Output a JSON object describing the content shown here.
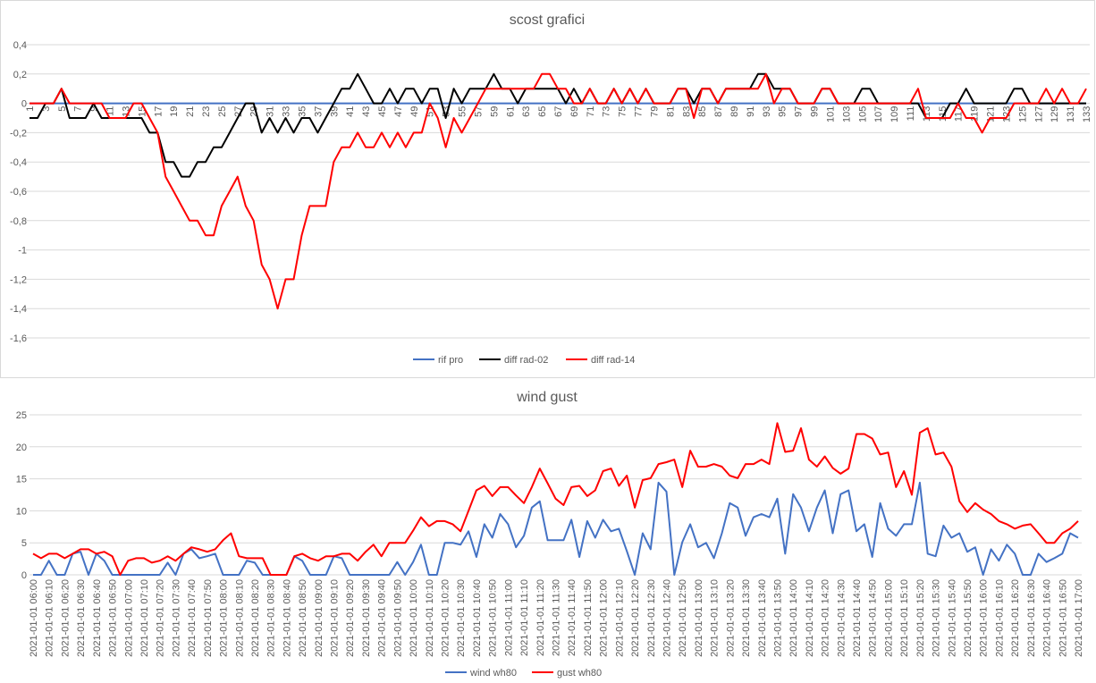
{
  "colors": {
    "rif_pro": "#4472C4",
    "diff_rad_02": "#000000",
    "diff_rad_14": "#FF0000",
    "wind": "#4472C4",
    "gust": "#FF0000",
    "grid": "#D9D9D9",
    "text": "#595959"
  },
  "chart_data": [
    {
      "type": "line",
      "title": "scost grafici",
      "ylim": [
        -1.6,
        0.4
      ],
      "ytick_step": 0.2,
      "yticks": [
        "0,4",
        "0,2",
        "0",
        "-0,2",
        "-0,4",
        "-0,6",
        "-0,8",
        "-1",
        "-1,2",
        "-1,4",
        "-1,6"
      ],
      "grid": true,
      "legend": "bottom",
      "x": [
        1,
        2,
        3,
        4,
        5,
        6,
        7,
        8,
        9,
        10,
        11,
        12,
        13,
        14,
        15,
        16,
        17,
        18,
        19,
        20,
        21,
        22,
        23,
        24,
        25,
        26,
        27,
        28,
        29,
        30,
        31,
        32,
        33,
        34,
        35,
        36,
        37,
        38,
        39,
        40,
        41,
        42,
        43,
        44,
        45,
        46,
        47,
        48,
        49,
        50,
        51,
        52,
        53,
        54,
        55,
        56,
        57,
        58,
        59,
        60,
        61,
        62,
        63,
        64,
        65,
        66,
        67,
        68,
        69,
        70,
        71,
        72,
        73,
        74,
        75,
        76,
        77,
        78,
        79,
        80,
        81,
        82,
        83,
        84,
        85,
        86,
        87,
        88,
        89,
        90,
        91,
        92,
        93,
        94,
        95,
        96,
        97,
        98,
        99,
        100,
        101,
        102,
        103,
        104,
        105,
        106,
        107,
        108,
        109,
        110,
        111,
        112,
        113,
        114,
        115,
        116,
        117,
        118,
        119,
        120,
        121,
        122,
        123,
        124,
        125,
        126,
        127,
        128,
        129,
        130,
        131,
        132,
        133
      ],
      "series": [
        {
          "name": "rif pro",
          "color": "#4472C4",
          "values": "zero"
        },
        {
          "name": "diff rad-02",
          "color": "#000000",
          "values": [
            -0.1,
            -0.1,
            0,
            0,
            0.1,
            -0.1,
            -0.1,
            -0.1,
            0,
            -0.1,
            -0.1,
            -0.1,
            -0.1,
            -0.1,
            -0.1,
            -0.2,
            -0.2,
            -0.4,
            -0.4,
            -0.5,
            -0.5,
            -0.4,
            -0.4,
            -0.3,
            -0.3,
            -0.2,
            -0.1,
            0,
            0,
            -0.2,
            -0.1,
            -0.2,
            -0.1,
            -0.2,
            -0.1,
            -0.1,
            -0.2,
            -0.1,
            0,
            0.1,
            0.1,
            0.2,
            0.1,
            0,
            0,
            0.1,
            0,
            0.1,
            0.1,
            0,
            0.1,
            0.1,
            -0.1,
            0.1,
            0,
            0.1,
            0.1,
            0.1,
            0.2,
            0.1,
            0.1,
            0,
            0.1,
            0.1,
            0.1,
            0.1,
            0.1,
            0,
            0.1,
            0,
            0.1,
            0,
            0,
            0.1,
            0,
            0.1,
            0,
            0.1,
            0,
            0,
            0,
            0.1,
            0.1,
            0,
            0.1,
            0.1,
            0,
            0.1,
            0.1,
            0.1,
            0.1,
            0.2,
            0.2,
            0.1,
            0.1,
            0.1,
            0,
            0,
            0,
            0.1,
            0.1,
            0,
            0,
            0,
            0.1,
            0.1,
            0,
            0,
            0,
            0,
            0,
            0,
            -0.1,
            -0.1,
            -0.1,
            0,
            0,
            0.1,
            0,
            0,
            0,
            0,
            0,
            0.1,
            0.1,
            0,
            0,
            0,
            0,
            0,
            0,
            0,
            0
          ]
        },
        {
          "name": "diff rad-14",
          "color": "#FF0000",
          "values": [
            0,
            0,
            0,
            0,
            0.1,
            0,
            0,
            0,
            0,
            0,
            -0.1,
            -0.1,
            -0.1,
            0,
            0,
            -0.1,
            -0.2,
            -0.5,
            -0.6,
            -0.7,
            -0.8,
            -0.8,
            -0.9,
            -0.9,
            -0.7,
            -0.6,
            -0.5,
            -0.7,
            -0.8,
            -1.1,
            -1.2,
            -1.4,
            -1.2,
            -1.2,
            -0.9,
            -0.7,
            -0.7,
            -0.7,
            -0.4,
            -0.3,
            -0.3,
            -0.2,
            -0.3,
            -0.3,
            -0.2,
            -0.3,
            -0.2,
            -0.3,
            -0.2,
            -0.2,
            0,
            -0.1,
            -0.3,
            -0.1,
            -0.2,
            -0.1,
            0,
            0.1,
            0.1,
            0.1,
            0.1,
            0.1,
            0.1,
            0.1,
            0.2,
            0.2,
            0.1,
            0.1,
            0,
            0,
            0.1,
            0,
            0,
            0.1,
            0,
            0.1,
            0,
            0.1,
            0,
            0,
            0,
            0.1,
            0.1,
            -0.1,
            0.1,
            0.1,
            0,
            0.1,
            0.1,
            0.1,
            0.1,
            0.1,
            0.2,
            0,
            0.1,
            0.1,
            0,
            0,
            0,
            0.1,
            0.1,
            0,
            0,
            0,
            0,
            0,
            0,
            0,
            0,
            0,
            0,
            0.1,
            -0.1,
            -0.1,
            -0.1,
            -0.1,
            0,
            -0.1,
            -0.1,
            -0.2,
            -0.1,
            -0.1,
            -0.1,
            0,
            0,
            0,
            0,
            0.1,
            0,
            0.1,
            0,
            0,
            0.1
          ]
        }
      ]
    },
    {
      "type": "line",
      "title": "wind gust",
      "ylim": [
        0,
        25
      ],
      "ytick_step": 5,
      "yticks": [
        "25",
        "20",
        "15",
        "10",
        "5",
        "0"
      ],
      "grid": true,
      "legend": "bottom",
      "x": [
        "2021-01-01 06:00",
        "2021-01-01 06:05",
        "2021-01-01 06:10",
        "2021-01-01 06:15",
        "2021-01-01 06:20",
        "2021-01-01 06:25",
        "2021-01-01 06:30",
        "2021-01-01 06:35",
        "2021-01-01 06:40",
        "2021-01-01 06:45",
        "2021-01-01 06:50",
        "2021-01-01 06:55",
        "2021-01-01 07:00",
        "2021-01-01 07:05",
        "2021-01-01 07:10",
        "2021-01-01 07:15",
        "2021-01-01 07:20",
        "2021-01-01 07:25",
        "2021-01-01 07:30",
        "2021-01-01 07:35",
        "2021-01-01 07:40",
        "2021-01-01 07:45",
        "2021-01-01 07:50",
        "2021-01-01 07:55",
        "2021-01-01 08:00",
        "2021-01-01 08:05",
        "2021-01-01 08:10",
        "2021-01-01 08:15",
        "2021-01-01 08:20",
        "2021-01-01 08:25",
        "2021-01-01 08:30",
        "2021-01-01 08:35",
        "2021-01-01 08:40",
        "2021-01-01 08:45",
        "2021-01-01 08:50",
        "2021-01-01 08:55",
        "2021-01-01 09:00",
        "2021-01-01 09:05",
        "2021-01-01 09:10",
        "2021-01-01 09:15",
        "2021-01-01 09:20",
        "2021-01-01 09:25",
        "2021-01-01 09:30",
        "2021-01-01 09:35",
        "2021-01-01 09:40",
        "2021-01-01 09:45",
        "2021-01-01 09:50",
        "2021-01-01 09:55",
        "2021-01-01 10:00",
        "2021-01-01 10:05",
        "2021-01-01 10:10",
        "2021-01-01 10:15",
        "2021-01-01 10:20",
        "2021-01-01 10:25",
        "2021-01-01 10:30",
        "2021-01-01 10:35",
        "2021-01-01 10:40",
        "2021-01-01 10:45",
        "2021-01-01 10:50",
        "2021-01-01 10:55",
        "2021-01-01 11:00",
        "2021-01-01 11:05",
        "2021-01-01 11:10",
        "2021-01-01 11:15",
        "2021-01-01 11:20",
        "2021-01-01 11:25",
        "2021-01-01 11:30",
        "2021-01-01 11:35",
        "2021-01-01 11:40",
        "2021-01-01 11:45",
        "2021-01-01 11:50",
        "2021-01-01 11:55",
        "2021-01-01 12:00",
        "2021-01-01 12:05",
        "2021-01-01 12:10",
        "2021-01-01 12:15",
        "2021-01-01 12:20",
        "2021-01-01 12:25",
        "2021-01-01 12:30",
        "2021-01-01 12:35",
        "2021-01-01 12:40",
        "2021-01-01 12:45",
        "2021-01-01 12:50",
        "2021-01-01 12:55",
        "2021-01-01 13:00",
        "2021-01-01 13:05",
        "2021-01-01 13:10",
        "2021-01-01 13:15",
        "2021-01-01 13:20",
        "2021-01-01 13:25",
        "2021-01-01 13:30",
        "2021-01-01 13:35",
        "2021-01-01 13:40",
        "2021-01-01 13:45",
        "2021-01-01 13:50",
        "2021-01-01 13:55",
        "2021-01-01 14:00",
        "2021-01-01 14:05",
        "2021-01-01 14:10",
        "2021-01-01 14:15",
        "2021-01-01 14:20",
        "2021-01-01 14:25",
        "2021-01-01 14:30",
        "2021-01-01 14:35",
        "2021-01-01 14:40",
        "2021-01-01 14:45",
        "2021-01-01 14:50",
        "2021-01-01 14:55",
        "2021-01-01 15:00",
        "2021-01-01 15:05",
        "2021-01-01 15:10",
        "2021-01-01 15:15",
        "2021-01-01 15:20",
        "2021-01-01 15:25",
        "2021-01-01 15:30",
        "2021-01-01 15:35",
        "2021-01-01 15:40",
        "2021-01-01 15:45",
        "2021-01-01 15:50",
        "2021-01-01 15:55",
        "2021-01-01 16:00",
        "2021-01-01 16:05",
        "2021-01-01 16:10",
        "2021-01-01 16:15",
        "2021-01-01 16:20",
        "2021-01-01 16:25",
        "2021-01-01 16:30",
        "2021-01-01 16:35",
        "2021-01-01 16:40",
        "2021-01-01 16:45",
        "2021-01-01 16:50",
        "2021-01-01 16:55",
        "2021-01-01 17:00"
      ],
      "series": [
        {
          "name": "wind wh80",
          "color": "#4472C4",
          "values": [
            0,
            0,
            2.2,
            0,
            0,
            3.3,
            3.6,
            0,
            3.3,
            2.2,
            0,
            0,
            0,
            0,
            0,
            0,
            0,
            1.9,
            0,
            3.3,
            4.0,
            2.6,
            2.9,
            3.3,
            0,
            0,
            0,
            2.2,
            1.9,
            0,
            0,
            0,
            0,
            2.9,
            2.2,
            0,
            0,
            0,
            2.9,
            2.6,
            0,
            0,
            0,
            0,
            0,
            0,
            2.0,
            0,
            2.0,
            4.7,
            0,
            0,
            5.0,
            5.0,
            4.7,
            6.8,
            2.8,
            7.9,
            5.8,
            9.5,
            7.9,
            4.3,
            6.1,
            10.5,
            11.5,
            5.4,
            5.4,
            5.4,
            8.6,
            2.8,
            8.4,
            5.8,
            8.6,
            6.8,
            7.2,
            3.7,
            0,
            6.5,
            4.0,
            14.4,
            13.0,
            0,
            5.1,
            7.9,
            4.3,
            5.0,
            2.6,
            6.5,
            11.2,
            10.5,
            6.1,
            9.0,
            9.5,
            9.0,
            11.9,
            3.3,
            12.6,
            10.5,
            6.8,
            10.5,
            13.2,
            6.5,
            12.6,
            13.2,
            6.8,
            7.9,
            2.8,
            11.2,
            7.2,
            6.1,
            7.9,
            7.9,
            14.4,
            3.3,
            2.9,
            7.7,
            5.8,
            6.5,
            3.6,
            4.3,
            0,
            4.0,
            2.2,
            4.7,
            3.3,
            0,
            0,
            3.3,
            2.0,
            2.6,
            3.3,
            6.5,
            5.8
          ]
        },
        {
          "name": "gust wh80",
          "color": "#FF0000",
          "values": [
            3.3,
            2.6,
            3.3,
            3.3,
            2.6,
            3.3,
            4.0,
            4.0,
            3.3,
            3.6,
            2.9,
            0,
            2.2,
            2.6,
            2.6,
            1.9,
            2.2,
            2.9,
            2.2,
            3.3,
            4.3,
            4.0,
            3.6,
            4.0,
            5.4,
            6.5,
            2.9,
            2.6,
            2.6,
            2.6,
            0,
            0,
            0,
            2.9,
            3.3,
            2.6,
            2.2,
            2.9,
            2.9,
            3.3,
            3.3,
            2.2,
            3.6,
            4.7,
            2.9,
            5.0,
            5.0,
            5.0,
            6.9,
            9.0,
            7.6,
            8.4,
            8.4,
            7.9,
            6.8,
            10.0,
            13.2,
            13.9,
            12.3,
            13.7,
            13.7,
            12.4,
            11.2,
            13.7,
            16.6,
            14.3,
            11.9,
            10.9,
            13.7,
            13.9,
            12.3,
            13.2,
            16.2,
            16.6,
            13.9,
            15.5,
            10.5,
            14.8,
            15.1,
            17.3,
            17.6,
            18.0,
            13.7,
            19.4,
            16.9,
            16.9,
            17.3,
            16.9,
            15.5,
            15.1,
            17.3,
            17.3,
            18.0,
            17.3,
            23.7,
            19.2,
            19.4,
            22.9,
            18.0,
            16.9,
            18.5,
            16.7,
            15.8,
            16.6,
            22.0,
            22.0,
            21.3,
            18.8,
            19.1,
            13.7,
            16.2,
            12.5,
            22.2,
            22.9,
            18.8,
            19.1,
            16.9,
            11.5,
            9.8,
            11.2,
            10.2,
            9.5,
            8.4,
            7.9,
            7.2,
            7.7,
            7.9,
            6.5,
            5.0,
            5.0,
            6.5,
            7.2,
            8.4
          ]
        }
      ]
    }
  ]
}
